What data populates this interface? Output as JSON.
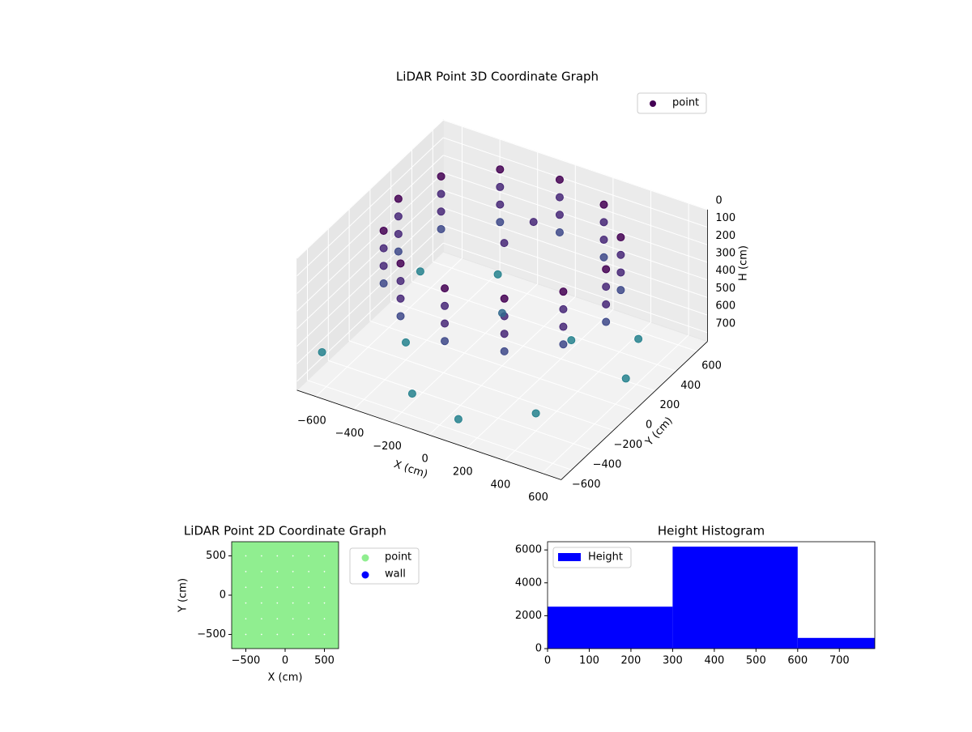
{
  "chart_data": [
    {
      "type": "scatter3d",
      "title": "LiDAR Point 3D Coordinate Graph",
      "xlabel": "X (cm)",
      "ylabel": "Y (cm)",
      "zlabel": "H (cm)",
      "xlim": [
        -700,
        700
      ],
      "ylim": [
        -700,
        700
      ],
      "zlim": [
        0,
        750
      ],
      "z_inverted": true,
      "xticks": [
        {
          "value": -600,
          "label": "−600"
        },
        {
          "value": -400,
          "label": "−400"
        },
        {
          "value": -200,
          "label": "−200"
        },
        0,
        200,
        400,
        600
      ],
      "yticks": [
        {
          "value": -600,
          "label": "−600"
        },
        {
          "value": -400,
          "label": "−400"
        },
        {
          "value": -200,
          "label": "−200"
        },
        0,
        200,
        400,
        600
      ],
      "zticks": [
        0,
        100,
        200,
        300,
        400,
        500,
        600,
        700
      ],
      "colormap": "viridis",
      "legend": "upper right",
      "grid": true,
      "series": [
        {
          "name": "point",
          "color": "#440154",
          "x": [
            550,
            476,
            275,
            0,
            -275,
            -476,
            -550,
            -476,
            -275,
            0,
            275,
            476,
            550,
            476,
            275,
            0,
            -275,
            -476,
            -550,
            -476,
            -275,
            0,
            275,
            476,
            550,
            476,
            275,
            0,
            -275,
            -476,
            -550,
            -476,
            -275,
            0,
            275,
            476,
            550,
            476,
            275,
            0,
            -275,
            -476,
            -550,
            -476,
            -275,
            0,
            275,
            476,
            -400,
            -200,
            100,
            400,
            600,
            500,
            -600,
            -300,
            200,
            0,
            0,
            -100,
            -650
          ],
          "y": [
            0,
            275,
            476,
            550,
            476,
            275,
            0,
            -275,
            -476,
            -550,
            -476,
            -275,
            0,
            275,
            476,
            550,
            476,
            275,
            0,
            -275,
            -476,
            -550,
            -476,
            -275,
            0,
            275,
            476,
            550,
            476,
            275,
            0,
            -275,
            -476,
            -550,
            -476,
            -275,
            0,
            275,
            476,
            550,
            476,
            275,
            0,
            -275,
            -476,
            -550,
            -476,
            -275,
            -200,
            -500,
            -600,
            -400,
            100,
            400,
            300,
            500,
            300,
            0,
            300,
            200,
            -550
          ],
          "z": [
            0,
            0,
            0,
            0,
            0,
            0,
            0,
            0,
            0,
            0,
            0,
            0,
            100,
            100,
            100,
            100,
            100,
            100,
            100,
            100,
            100,
            100,
            100,
            100,
            200,
            200,
            200,
            200,
            200,
            200,
            200,
            200,
            200,
            200,
            200,
            200,
            300,
            300,
            300,
            300,
            300,
            300,
            300,
            300,
            300,
            300,
            300,
            300,
            650,
            700,
            680,
            650,
            660,
            640,
            600,
            620,
            700,
            450,
            100,
            200,
            600
          ]
        }
      ]
    },
    {
      "type": "scatter",
      "title": "LiDAR Point 2D Coordinate Graph",
      "xlabel": "X (cm)",
      "ylabel": "Y (cm)",
      "xlim": [
        -680,
        680
      ],
      "ylim": [
        -680,
        680
      ],
      "xticks": [
        {
          "value": -500,
          "label": "−500"
        },
        0,
        500
      ],
      "yticks": [
        {
          "value": -500,
          "label": "−500"
        },
        0,
        500
      ],
      "legend": "outside right",
      "series": [
        {
          "name": "point",
          "color": "#90ee90",
          "x": [
            -600,
            -400,
            -200,
            0,
            200,
            400,
            600,
            -600,
            -400,
            -200,
            0,
            200,
            400,
            600,
            -600,
            -400,
            -200,
            0,
            200,
            400,
            600,
            -600,
            -400,
            -200,
            0,
            200,
            400,
            600,
            -600,
            -400,
            -200,
            0,
            200,
            400,
            600,
            -600,
            -400,
            -200,
            0,
            200,
            400,
            600,
            -600,
            -400,
            -200,
            0,
            200,
            400,
            600
          ],
          "y": [
            -600,
            -600,
            -600,
            -600,
            -600,
            -600,
            -600,
            -400,
            -400,
            -400,
            -400,
            -400,
            -400,
            -400,
            -200,
            -200,
            -200,
            -200,
            -200,
            -200,
            -200,
            0,
            0,
            0,
            0,
            0,
            0,
            0,
            200,
            200,
            200,
            200,
            200,
            200,
            200,
            400,
            400,
            400,
            400,
            400,
            400,
            400,
            600,
            600,
            600,
            600,
            600,
            600,
            600
          ]
        },
        {
          "name": "wall",
          "color": "#0000ff",
          "x": [],
          "y": []
        }
      ]
    },
    {
      "type": "histogram",
      "title": "Height Histogram",
      "xlim": [
        0,
        785
      ],
      "ylim": [
        0,
        6500
      ],
      "xticks": [
        0,
        100,
        200,
        300,
        400,
        500,
        600,
        700
      ],
      "yticks": [
        0,
        2000,
        4000,
        6000
      ],
      "legend": "upper left",
      "series": [
        {
          "name": "Height",
          "color": "#0000ff",
          "bins": [
            0,
            300,
            600,
            785
          ],
          "values": [
            2550,
            6200,
            650
          ]
        }
      ]
    }
  ]
}
